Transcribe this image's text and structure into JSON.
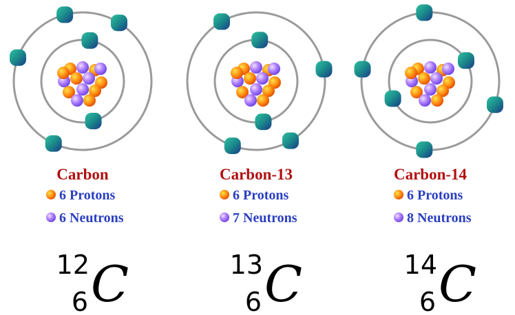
{
  "atoms": [
    {
      "name": "Carbon",
      "protons": "6 Protons",
      "neutrons": "6 Neutrons",
      "mass_number": "12",
      "atomic_number": "6",
      "symbol": "C"
    },
    {
      "name": "Carbon-13",
      "protons": "6 Protons",
      "neutrons": "7 Neutrons",
      "mass_number": "13",
      "atomic_number": "6",
      "symbol": "C"
    },
    {
      "name": "Carbon-14",
      "protons": "6 Protons",
      "neutrons": "8 Neutrons",
      "mass_number": "14",
      "atomic_number": "6",
      "symbol": "C"
    }
  ]
}
